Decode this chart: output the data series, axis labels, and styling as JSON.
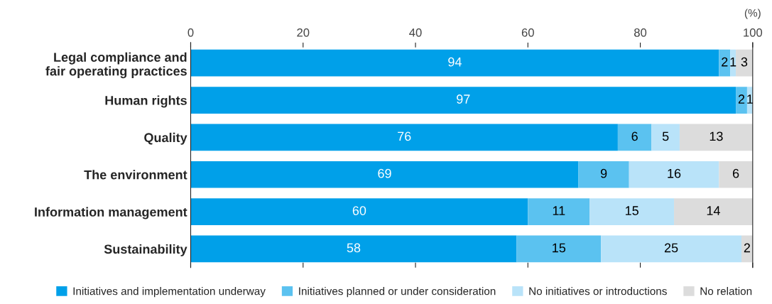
{
  "chart_data": {
    "type": "bar",
    "orientation": "horizontal",
    "stacked": true,
    "xlabel": "(%)",
    "categories": [
      "Legal compliance and\nfair operating practices",
      "Human rights",
      "Quality",
      "The environment",
      "Information management",
      "Sustainability"
    ],
    "series": [
      {
        "name": "Initiatives and implementation underway",
        "color": "#00a0e9",
        "values": [
          94,
          97,
          76,
          69,
          60,
          58
        ]
      },
      {
        "name": "Initiatives planned or under consideration",
        "color": "#5bc2f0",
        "values": [
          2,
          2,
          6,
          9,
          11,
          15
        ]
      },
      {
        "name": "No initiatives or introductions",
        "color": "#b9e3f9",
        "values": [
          1,
          1,
          5,
          16,
          15,
          25
        ]
      },
      {
        "name": "No relation",
        "color": "#dcdcdc",
        "values": [
          3,
          null,
          13,
          6,
          14,
          2
        ]
      }
    ],
    "xlim": [
      0,
      100
    ],
    "xticks": [
      0,
      20,
      40,
      60,
      80,
      100
    ],
    "data_labels": true,
    "legend": "bottom",
    "grid": false
  }
}
